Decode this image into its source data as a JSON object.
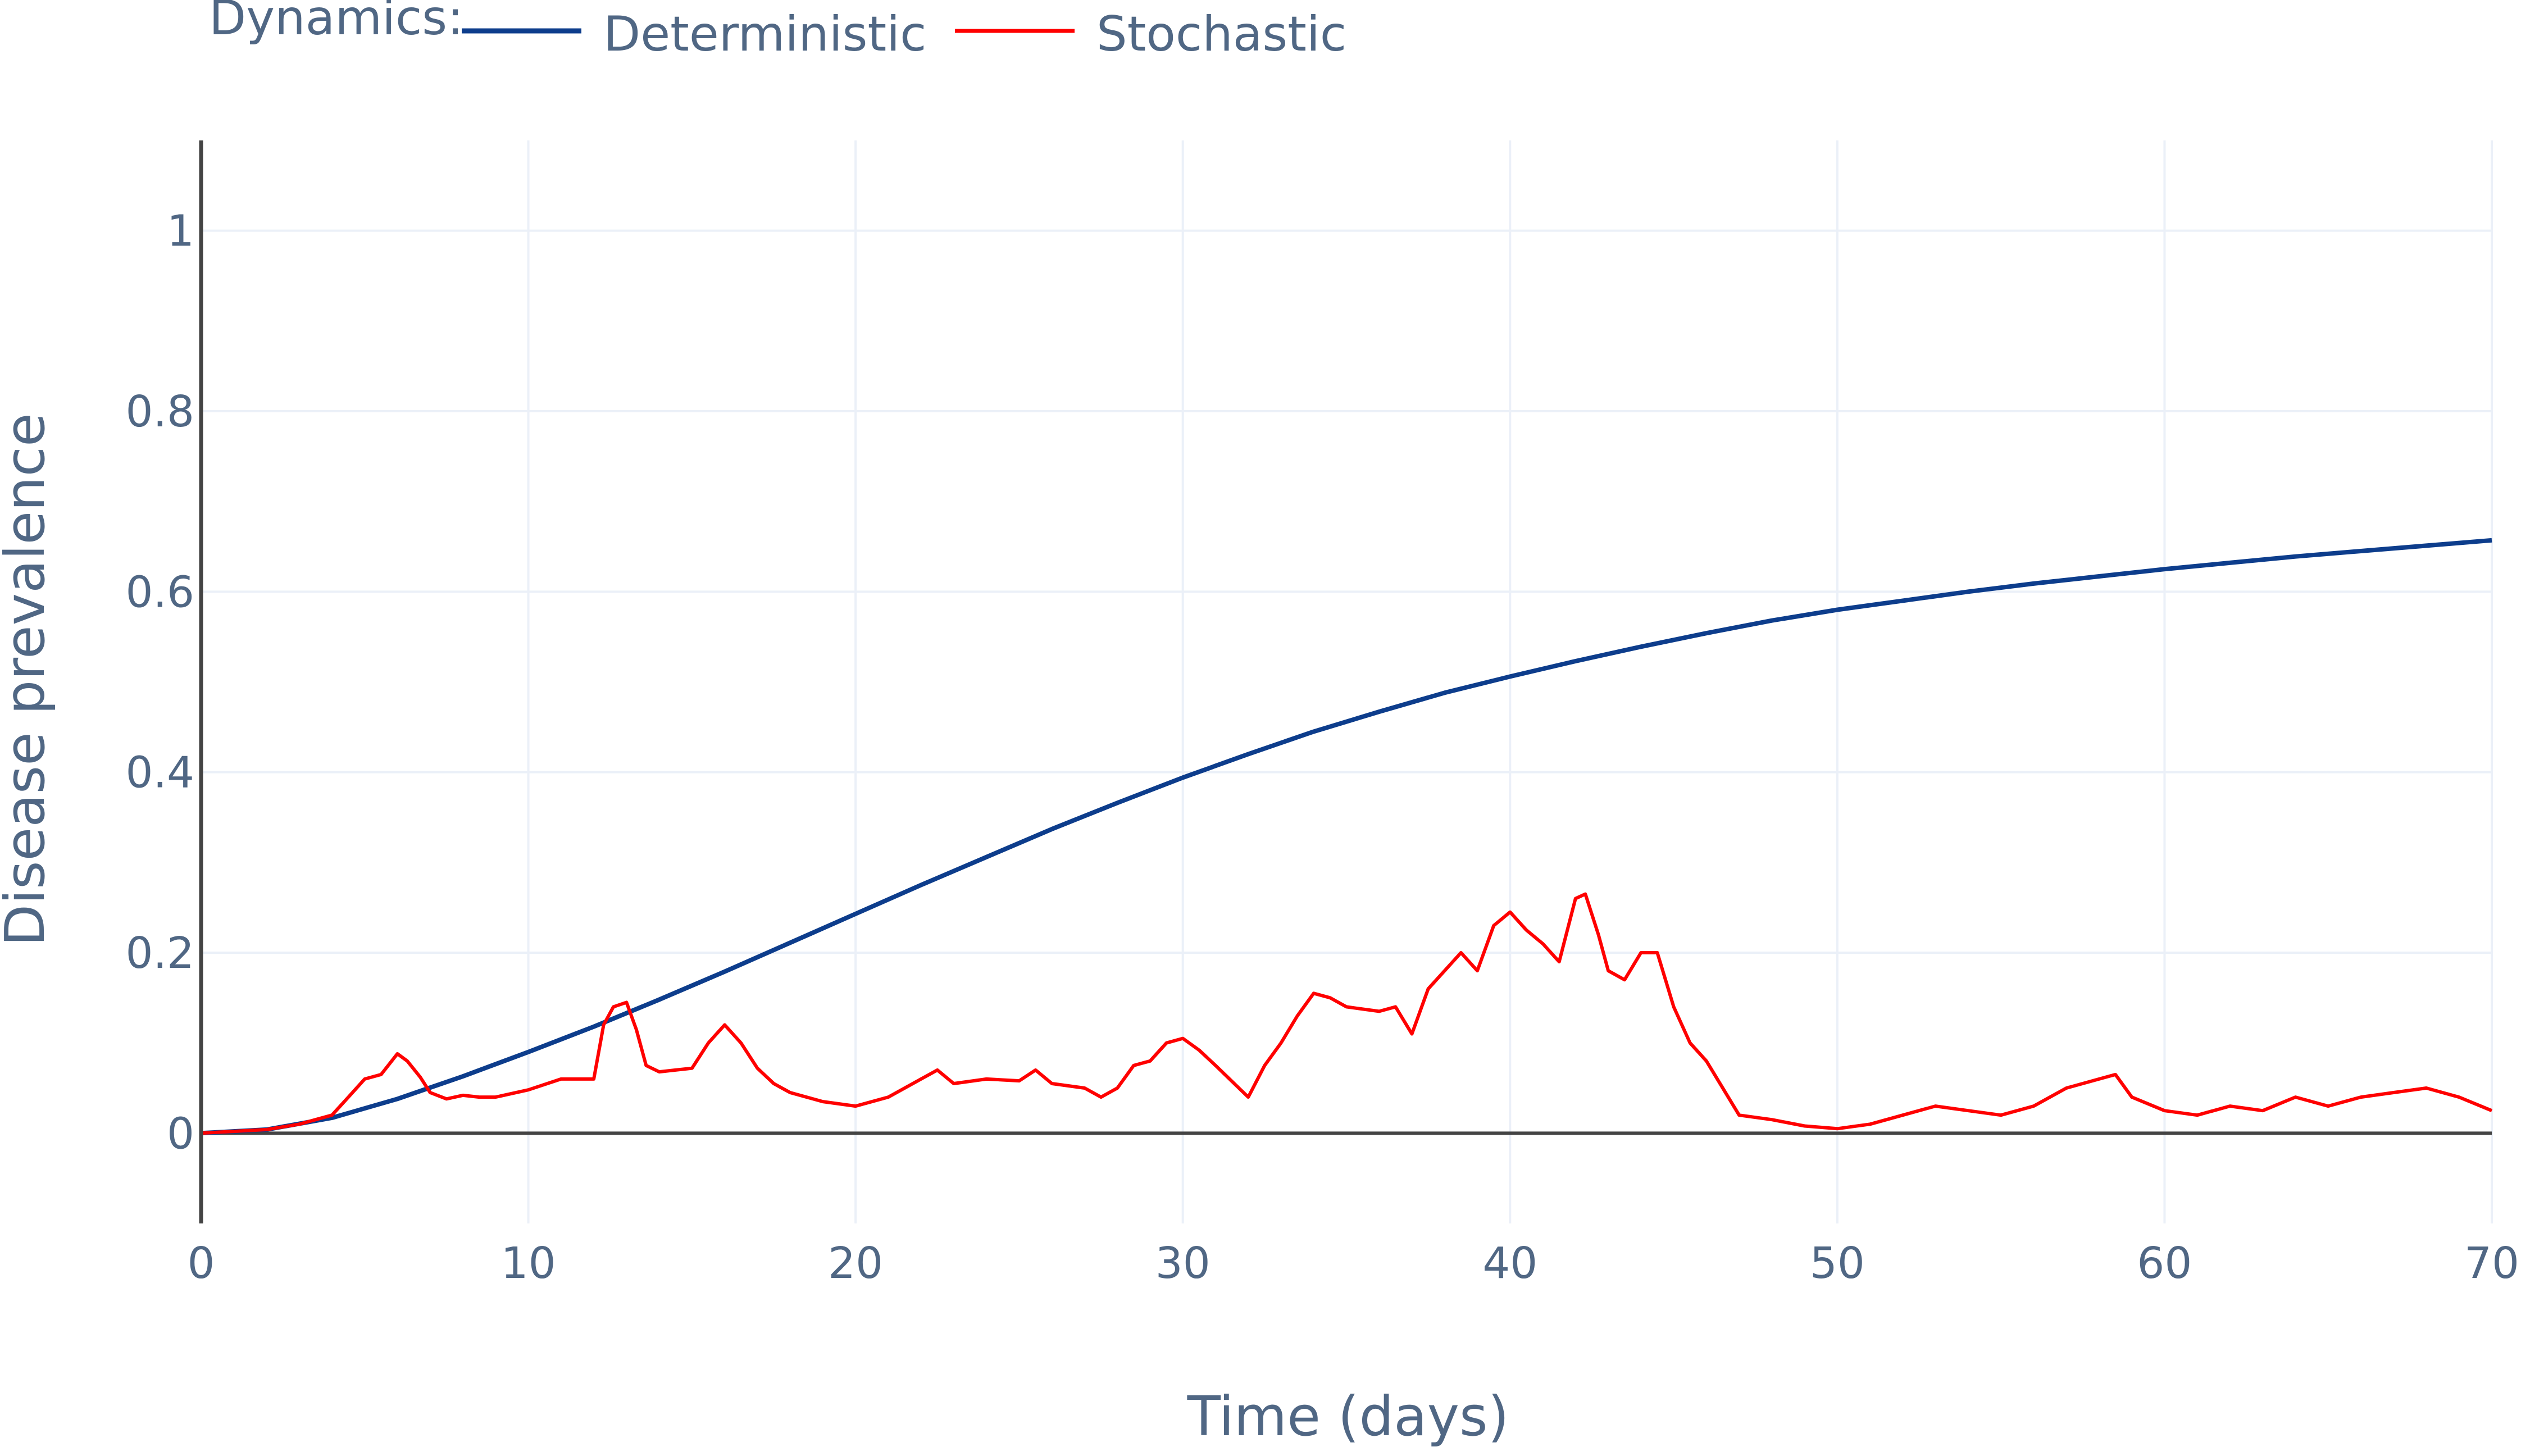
{
  "chart_data": {
    "type": "line",
    "title": "",
    "xlabel": "Time (days)",
    "ylabel": "Disease prevalence",
    "xlim": [
      0,
      70
    ],
    "ylim": [
      -0.1,
      1.1
    ],
    "x_ticks": [
      "0",
      "10",
      "20",
      "30",
      "40",
      "50",
      "60",
      "70"
    ],
    "y_ticks": [
      "0",
      "0.2",
      "0.4",
      "0.6",
      "0.8",
      "1"
    ],
    "grid": true,
    "legend": {
      "title": "Dynamics:",
      "placement": "top-left, horizontal",
      "items": [
        "Deterministic",
        "Stochastic"
      ]
    },
    "series": [
      {
        "name": "Deterministic",
        "color": "#0d3d8c",
        "x": [
          0,
          2,
          4,
          6,
          8,
          10,
          12,
          14,
          16,
          18,
          20,
          22,
          24,
          26,
          28,
          30,
          32,
          34,
          36,
          38,
          40,
          42,
          44,
          46,
          48,
          50,
          52,
          54,
          56,
          58,
          60,
          62,
          64,
          66,
          68,
          70
        ],
        "y": [
          0.0,
          0.004,
          0.017,
          0.038,
          0.063,
          0.09,
          0.118,
          0.148,
          0.179,
          0.211,
          0.243,
          0.275,
          0.306,
          0.337,
          0.366,
          0.394,
          0.42,
          0.445,
          0.467,
          0.488,
          0.506,
          0.523,
          0.539,
          0.554,
          0.568,
          0.58,
          0.59,
          0.6,
          0.609,
          0.617,
          0.625,
          0.632,
          0.639,
          0.645,
          0.651,
          0.657
        ]
      },
      {
        "name": "Stochastic",
        "color": "#ff0000",
        "x": [
          0,
          1,
          2,
          3,
          3.5,
          4,
          4.5,
          5,
          5.5,
          6,
          6.3,
          6.7,
          7,
          7.5,
          8,
          8.5,
          9,
          10,
          11,
          11.5,
          12,
          12.3,
          12.6,
          13,
          13.3,
          13.6,
          14,
          14.5,
          15,
          15.5,
          16,
          16.5,
          17,
          17.5,
          18,
          19,
          20,
          21,
          22,
          22.5,
          23,
          24,
          25,
          25.5,
          26,
          27,
          27.5,
          28,
          28.5,
          29,
          29.5,
          30,
          30.5,
          31,
          32,
          32.5,
          33,
          33.5,
          34,
          34.5,
          35,
          36,
          36.5,
          37,
          37.5,
          38,
          38.5,
          39,
          39.5,
          40,
          40.5,
          41,
          41.5,
          42,
          42.3,
          42.7,
          43,
          43.5,
          44,
          44.5,
          45,
          45.5,
          46,
          47,
          48,
          49,
          50,
          51,
          52,
          53,
          54,
          55,
          56,
          57,
          58,
          58.5,
          59,
          60,
          61,
          62,
          63,
          64,
          65,
          66,
          67,
          68,
          69,
          70
        ],
        "y": [
          0.0,
          0.002,
          0.004,
          0.01,
          0.015,
          0.02,
          0.04,
          0.06,
          0.065,
          0.088,
          0.08,
          0.062,
          0.045,
          0.038,
          0.042,
          0.04,
          0.04,
          0.048,
          0.06,
          0.06,
          0.06,
          0.12,
          0.14,
          0.145,
          0.115,
          0.075,
          0.068,
          0.07,
          0.072,
          0.1,
          0.12,
          0.1,
          0.072,
          0.055,
          0.045,
          0.035,
          0.03,
          0.04,
          0.06,
          0.07,
          0.055,
          0.06,
          0.058,
          0.07,
          0.055,
          0.05,
          0.04,
          0.05,
          0.075,
          0.08,
          0.1,
          0.105,
          0.092,
          0.075,
          0.04,
          0.075,
          0.1,
          0.13,
          0.155,
          0.15,
          0.14,
          0.135,
          0.14,
          0.11,
          0.16,
          0.18,
          0.2,
          0.18,
          0.23,
          0.245,
          0.225,
          0.21,
          0.19,
          0.26,
          0.265,
          0.22,
          0.18,
          0.17,
          0.2,
          0.2,
          0.14,
          0.1,
          0.08,
          0.02,
          0.015,
          0.008,
          0.005,
          0.01,
          0.02,
          0.03,
          0.025,
          0.02,
          0.03,
          0.05,
          0.06,
          0.065,
          0.04,
          0.025,
          0.02,
          0.03,
          0.025,
          0.04,
          0.03,
          0.04,
          0.045,
          0.05,
          0.04,
          0.025
        ]
      }
    ]
  }
}
